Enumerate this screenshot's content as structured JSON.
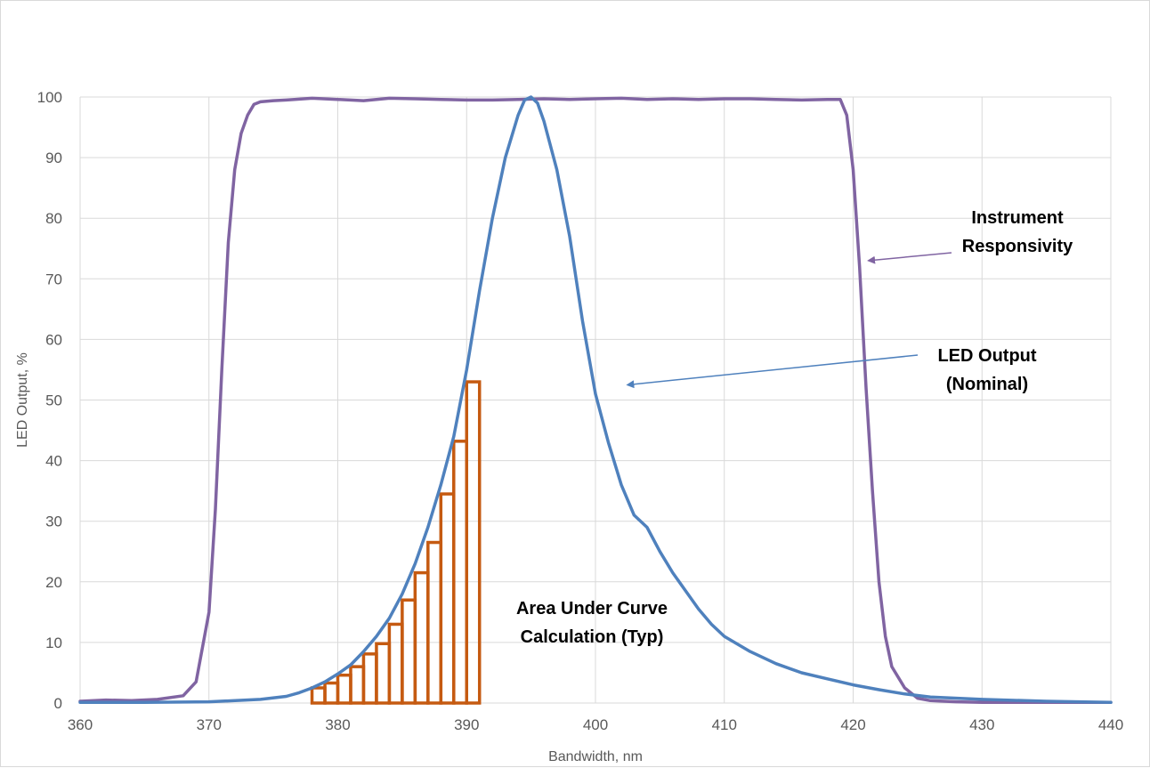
{
  "chart_data": {
    "type": "line",
    "title": "",
    "xlabel": "Bandwidth, nm",
    "ylabel": "LED Output,  %",
    "xlim": [
      360,
      440
    ],
    "ylim": [
      0,
      100
    ],
    "x_ticks": [
      360,
      370,
      380,
      390,
      400,
      410,
      420,
      430,
      440
    ],
    "y_ticks": [
      0,
      10,
      20,
      30,
      40,
      50,
      60,
      70,
      80,
      90,
      100
    ],
    "grid": true,
    "legend": "none",
    "series": [
      {
        "name": "Instrument Responsivity",
        "color": "#8064a2",
        "x": [
          360,
          362,
          364,
          366,
          368,
          369,
          370,
          370.5,
          371,
          371.5,
          372,
          372.5,
          373,
          373.5,
          374,
          375,
          376,
          378,
          380,
          382,
          384,
          386,
          388,
          390,
          392,
          394,
          396,
          398,
          400,
          402,
          404,
          406,
          408,
          410,
          412,
          414,
          416,
          418,
          419,
          419.5,
          420,
          420.5,
          421,
          421.5,
          422,
          422.5,
          423,
          424,
          425,
          426,
          428,
          430,
          435,
          440
        ],
        "y": [
          0.3,
          0.5,
          0.4,
          0.6,
          1.2,
          3.5,
          15,
          32,
          55,
          76,
          88,
          94,
          97,
          98.8,
          99.2,
          99.4,
          99.5,
          99.8,
          99.6,
          99.4,
          99.8,
          99.7,
          99.6,
          99.5,
          99.5,
          99.6,
          99.7,
          99.6,
          99.7,
          99.8,
          99.6,
          99.7,
          99.6,
          99.7,
          99.7,
          99.6,
          99.5,
          99.6,
          99.6,
          97,
          88,
          72,
          52,
          35,
          20,
          11,
          6,
          2.5,
          0.8,
          0.4,
          0.2,
          0.1,
          0.1,
          0.1
        ]
      },
      {
        "name": "LED Output (Nominal)",
        "color": "#4f81bd",
        "x": [
          360,
          365,
          370,
          374,
          376,
          377,
          378,
          379,
          380,
          381,
          382,
          383,
          384,
          385,
          386,
          387,
          388,
          389,
          390,
          391,
          392,
          393,
          394,
          394.5,
          395,
          395.5,
          396,
          397,
          398,
          399,
          400,
          401,
          402,
          403,
          404,
          405,
          406,
          407,
          408,
          409,
          410,
          412,
          414,
          416,
          418,
          420,
          422,
          424,
          426,
          430,
          435,
          440
        ],
        "y": [
          0.1,
          0.1,
          0.2,
          0.6,
          1.1,
          1.7,
          2.5,
          3.5,
          4.8,
          6.3,
          8.5,
          11,
          14,
          18,
          23,
          29,
          36,
          44,
          55,
          68,
          80,
          90,
          97,
          99.5,
          100,
          99,
          96,
          88,
          77,
          63,
          51,
          43,
          36,
          31,
          29,
          25,
          21.5,
          18.5,
          15.5,
          13,
          11,
          8.5,
          6.5,
          5,
          4,
          3,
          2.2,
          1.5,
          1,
          0.6,
          0.3,
          0.1
        ]
      }
    ],
    "bars": {
      "name": "Area Under Curve Calculation (Typ)",
      "color": "#c55a11",
      "x": [
        378,
        379,
        380,
        381,
        382,
        383,
        384,
        385,
        386,
        387,
        388,
        389,
        390
      ],
      "width": 1,
      "values": [
        2.5,
        3.3,
        4.6,
        6,
        8.1,
        9.8,
        13,
        17,
        21.5,
        26.5,
        34.5,
        43.2,
        53
      ]
    },
    "annotations": [
      {
        "id": "responsivity",
        "lines": [
          "Instrument",
          "Responsivity"
        ],
        "arrow_to": {
          "x": 421.2,
          "y": 73
        }
      },
      {
        "id": "led",
        "lines": [
          "LED Output",
          "(Nominal)"
        ],
        "arrow_to": {
          "x": 402.5,
          "y": 52.5
        }
      },
      {
        "id": "area",
        "lines": [
          "Area Under Curve",
          "Calculation (Typ)"
        ]
      }
    ]
  }
}
